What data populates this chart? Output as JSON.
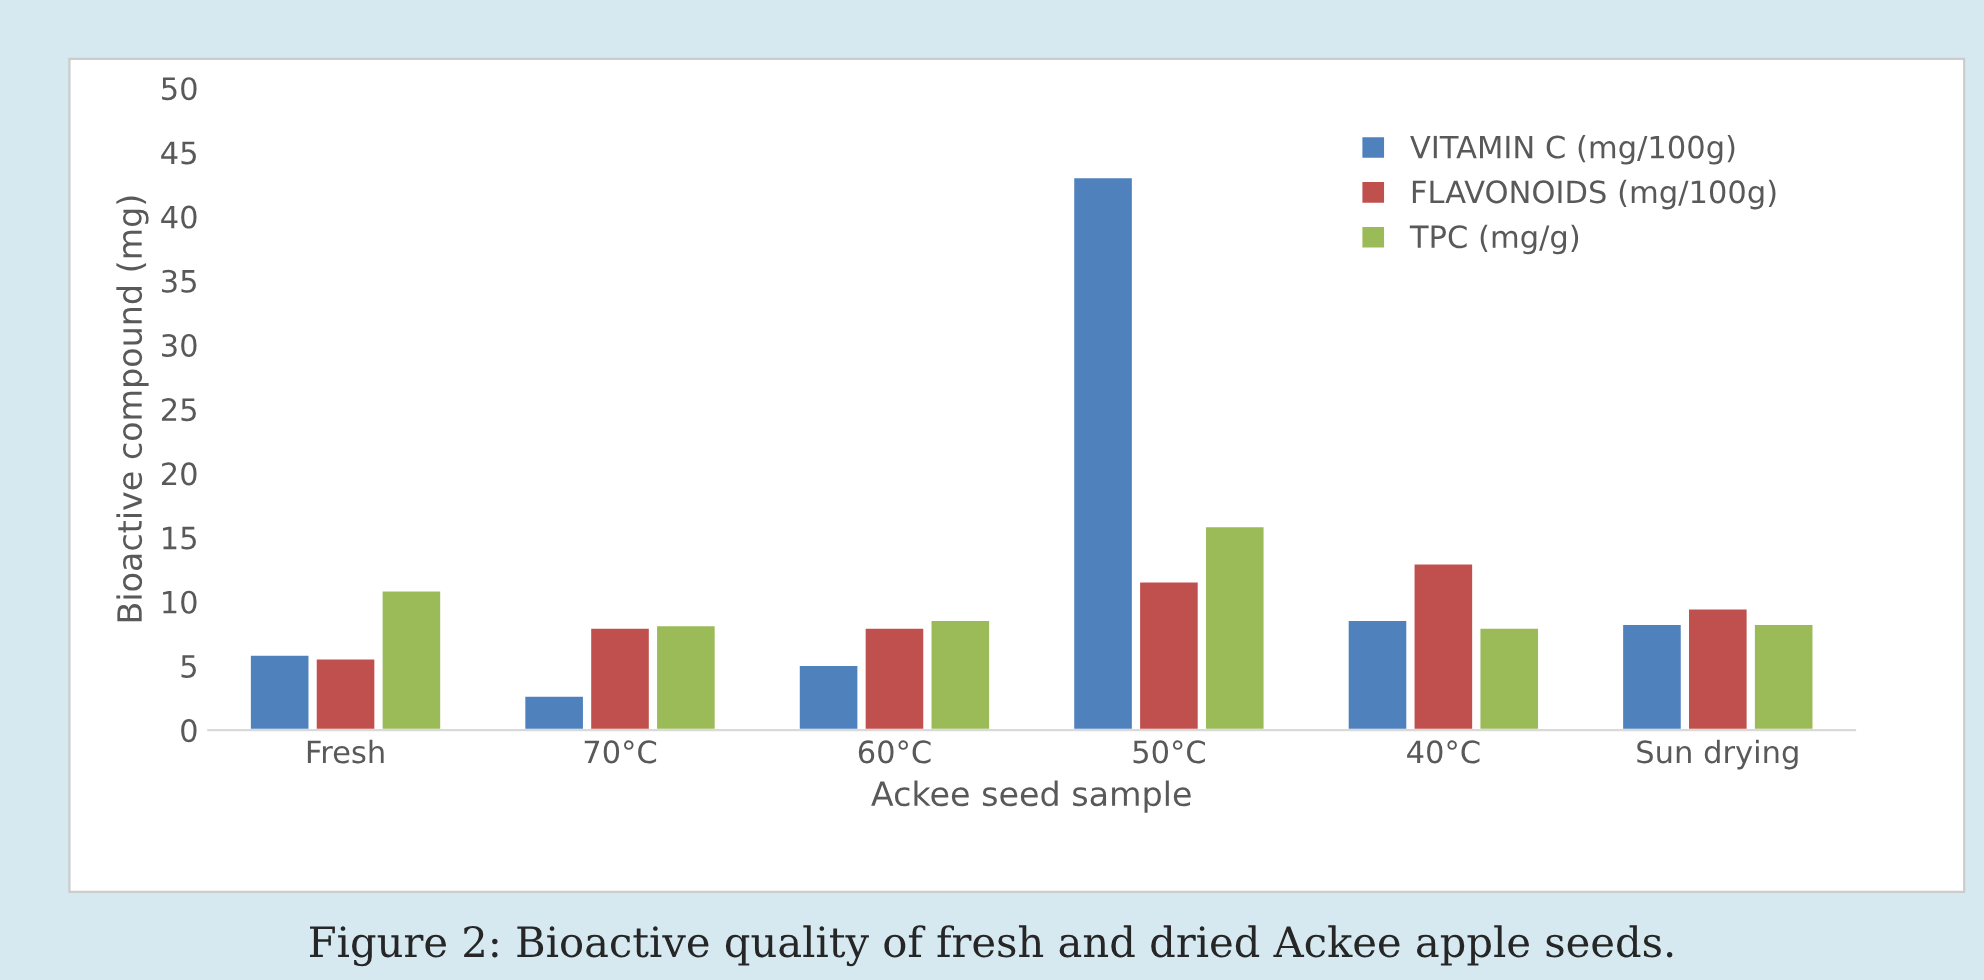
{
  "chart_data": {
    "type": "bar",
    "xlabel": "Ackee seed sample",
    "ylabel": "Bioactive compound (mg)",
    "categories": [
      "Fresh",
      "70°C",
      "60°C",
      "50°C",
      "40°C",
      "Sun drying"
    ],
    "series": [
      {
        "name": "VITAMIN C (mg/100g)",
        "color": "#4f81bd",
        "values": [
          5.9,
          2.7,
          5.1,
          43.1,
          8.6,
          8.3
        ]
      },
      {
        "name": "FLAVONOIDS (mg/100g)",
        "color": "#c0504d",
        "values": [
          5.6,
          8.0,
          8.0,
          11.6,
          13.0,
          9.5
        ]
      },
      {
        "name": "TPC (mg/g)",
        "color": "#9bbb59",
        "values": [
          10.9,
          8.2,
          8.6,
          15.9,
          8.0,
          8.3
        ]
      }
    ],
    "ylim": [
      0,
      50
    ],
    "yticks": [
      0,
      5,
      10,
      15,
      20,
      25,
      30,
      35,
      40,
      45,
      50
    ],
    "legend": "top right",
    "grid": false,
    "annotations": [
      "Figure 2: Bioactive quality of fresh and dried Ackee apple seeds."
    ]
  }
}
